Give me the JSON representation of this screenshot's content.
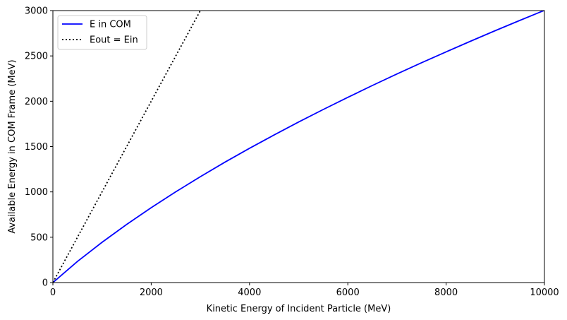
{
  "chart_data": {
    "type": "line",
    "xlabel": "Kinetic Energy of Incident Particle (MeV)",
    "ylabel": "Available Energy in COM Frame (MeV)",
    "xlim": [
      0,
      10000
    ],
    "ylim": [
      0,
      3000
    ],
    "xticks": [
      0,
      2000,
      4000,
      6000,
      8000,
      10000
    ],
    "yticks": [
      0,
      500,
      1000,
      1500,
      2000,
      2500,
      3000
    ],
    "grid": false,
    "legend_position": "top-left",
    "series": [
      {
        "name": "E in COM",
        "color": "#0000ff",
        "style": "solid",
        "x": [
          0,
          500,
          1000,
          1500,
          2000,
          2500,
          3000,
          3500,
          4000,
          4500,
          5000,
          5500,
          6000,
          6500,
          7000,
          7500,
          8000,
          8500,
          9000,
          9500,
          10000
        ],
        "y": [
          0,
          233,
          444,
          641,
          826,
          1001,
          1168,
          1328,
          1481,
          1628,
          1771,
          1909,
          2043,
          2174,
          2301,
          2425,
          2545,
          2663,
          2779,
          2892,
          3003
        ]
      },
      {
        "name": "Eout = Ein",
        "color": "#000000",
        "style": "dotted",
        "x": [
          0,
          3000
        ],
        "y": [
          0,
          3000
        ]
      }
    ]
  }
}
